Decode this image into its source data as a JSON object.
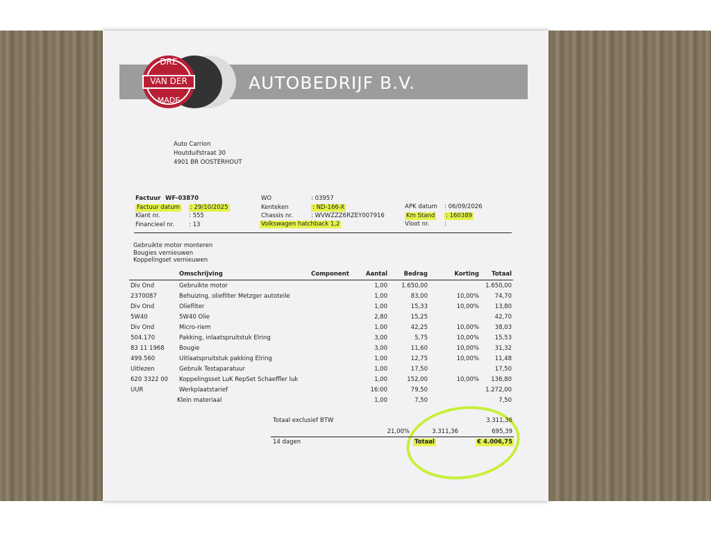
{
  "header": {
    "logo_top": "DRE",
    "logo_middle": "VAN DER",
    "logo_bottom": "MADE",
    "company": "AUTOBEDRIJF B.V."
  },
  "address": [
    "Auto Carrion",
    "Houtduifstraat  30",
    "4901 BR OOSTERHOUT"
  ],
  "invoice": {
    "left": [
      {
        "label": "Factuur",
        "value": "WF-03870"
      },
      {
        "label": "Factuur datum",
        "value": ": 29/10/2025"
      },
      {
        "label": "Klant nr.",
        "value": ": 555"
      },
      {
        "label": "Financieel nr.",
        "value": ": 13"
      }
    ],
    "middle": [
      {
        "label": "WO",
        "value": ": 03957"
      },
      {
        "label": "Kenteken",
        "value": ": ND-166-X"
      },
      {
        "label": "Chassis nr.",
        "value": ": WVWZZZ6RZEY007916"
      }
    ],
    "vehicle": "Volkswagen hatchback 1,2",
    "right": [
      {
        "label": "APK datum",
        "value": ": 06/09/2026"
      },
      {
        "label": "Km Stand",
        "value": ": 160389"
      },
      {
        "label": "Vloot nr.",
        "value": ":"
      }
    ]
  },
  "work": [
    "Gebruikte motor monteren",
    "Bougies vernieuwen",
    "Koppelingset vernieuwen"
  ],
  "table": {
    "headers": {
      "omschrijving": "Omschrijving",
      "component": "Component",
      "aantal": "Aantal",
      "bedrag": "Bedrag",
      "korting": "Korting",
      "totaal": "Totaal"
    },
    "rows": [
      {
        "code": "Div Ond",
        "omschrijving": "Gebruikte motor",
        "aantal": "1,00",
        "bedrag": "1.650,00",
        "totaal": "1.650,00"
      },
      {
        "code": "2370087",
        "omschrijving": "Behuizing, oliefilter Metzger autoteile",
        "aantal": "1,00",
        "bedrag": "83,00",
        "korting": "10,00%",
        "totaal": "74,70"
      },
      {
        "code": "Div Ond",
        "omschrijving": "Oliefilter",
        "aantal": "1,00",
        "bedrag": "15,33",
        "korting": "10,00%",
        "totaal": "13,80"
      },
      {
        "code": "5W40",
        "omschrijving": "5W40 Olie",
        "aantal": "2,80",
        "bedrag": "15,25",
        "totaal": "42,70"
      },
      {
        "code": "Div Ond",
        "omschrijving": "Micro-riem",
        "aantal": "1,00",
        "bedrag": "42,25",
        "korting": "10,00%",
        "totaal": "38,03"
      },
      {
        "code": "504.170",
        "omschrijving": "Pakking, inlaatspruitstuk Elring",
        "aantal": "3,00",
        "bedrag": "5,75",
        "korting": "10,00%",
        "totaal": "15,53"
      },
      {
        "code": "83 11 1968",
        "omschrijving": "Bougie",
        "aantal": "3,00",
        "bedrag": "11,60",
        "korting": "10,00%",
        "totaal": "31,32"
      },
      {
        "code": "499.560",
        "omschrijving": "Uitlaatspruitstuk pakking Elring",
        "aantal": "1,00",
        "bedrag": "12,75",
        "korting": "10,00%",
        "totaal": "11,48"
      },
      {
        "code": "Uitlezen",
        "omschrijving": "Gebruik Testaparatuur",
        "aantal": "1,00",
        "bedrag": "17,50",
        "totaal": "17,50"
      },
      {
        "code": "620 3322 00",
        "omschrijving": "Koppelingsset LuK RepSet Schaeffler luk",
        "aantal": "1,00",
        "bedrag": "152,00",
        "korting": "10,00%",
        "totaal": "136,80"
      },
      {
        "code": "UUR",
        "omschrijving": "Werkplaatstarief",
        "aantal": "16:00",
        "bedrag": "79,50",
        "totaal": "1.272,00"
      },
      {
        "omschrijving": "Klein materiaal",
        "aantal": "1,00",
        "bedrag": "7,50",
        "totaal": "7,50"
      }
    ]
  },
  "totals": {
    "excl_label": "Totaal exclusief BTW",
    "excl_value": "3.311,36",
    "btw_rate": "21,00%",
    "btw_base": "3.311,36",
    "btw_value": "695,39",
    "terms": "14 dagen",
    "total_label": "Totaal",
    "total_value": "€ 4.006,75"
  }
}
